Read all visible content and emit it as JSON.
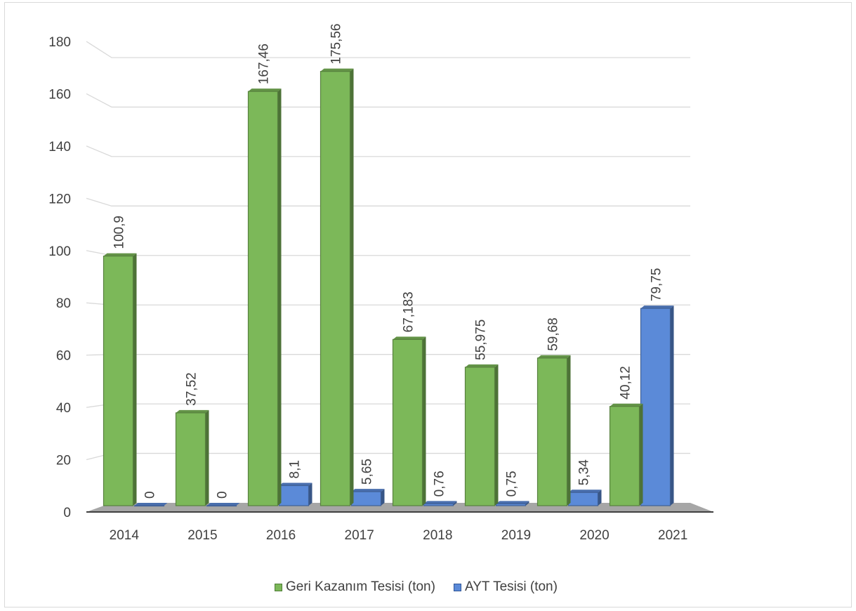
{
  "chart_data": {
    "type": "bar",
    "categories": [
      "2014",
      "2015",
      "2016",
      "2017",
      "2018",
      "2019",
      "2020",
      "2021"
    ],
    "series": [
      {
        "name": "Geri Kazanım Tesisi (ton)",
        "values": [
          100.9,
          37.52,
          167.46,
          175.56,
          67.183,
          55.975,
          59.68,
          40.12
        ],
        "labels": [
          "100,9",
          "37,52",
          "167,46",
          "175,56",
          "67,183",
          "55,975",
          "59,68",
          "40,12"
        ],
        "color": "#7cb859"
      },
      {
        "name": "AYT Tesisi (ton)",
        "values": [
          0,
          0,
          8.1,
          5.65,
          0.76,
          0.75,
          5.34,
          79.75
        ],
        "labels": [
          "0",
          "0",
          "8,1",
          "5,65",
          "0,76",
          "0,75",
          "5,34",
          "79,75"
        ],
        "color": "#5b8ad8"
      }
    ],
    "ylim": [
      0,
      180
    ],
    "yticks": [
      "0",
      "20",
      "40",
      "60",
      "80",
      "100",
      "120",
      "140",
      "160",
      "180"
    ],
    "grid": true,
    "legend": "bottom",
    "style": "3d-clustered-column"
  }
}
